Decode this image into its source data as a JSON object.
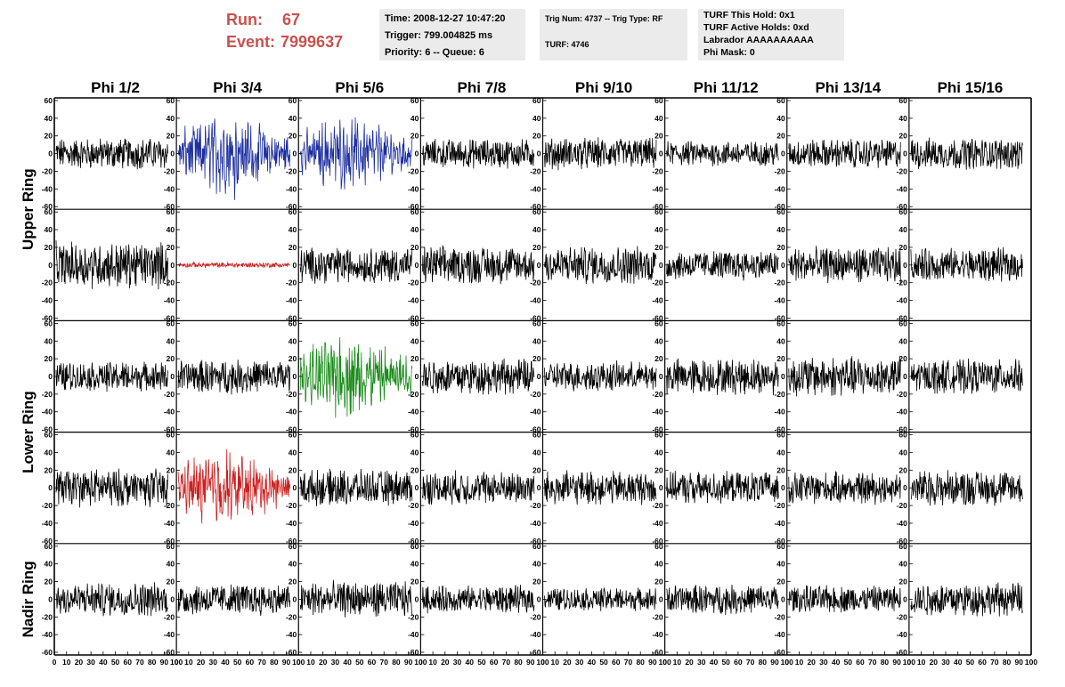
{
  "run_header": {
    "run_label": "Run:",
    "run_value": "67",
    "event_label": "Event:",
    "event_value": "7999637",
    "color": "#c8524f"
  },
  "info_boxes": {
    "time_box": [
      "Time: 2008-12-27 10:47:20",
      "Trigger: 799.004825 ms",
      "Priority: 6 -- Queue: 6"
    ],
    "trig_box": [
      "Trig Num: 4737 -- Trig Type: RF",
      "",
      "TURF: 4746"
    ],
    "turf_box": [
      "TURF This Hold: 0x1",
      "TURF Active Holds: 0xd",
      "Labrador AAAAAAAAAA",
      "Phi Mask: 0"
    ]
  },
  "chart_data": {
    "type": "line",
    "columns": [
      "Phi 1/2",
      "Phi 3/4",
      "Phi 5/6",
      "Phi 7/8",
      "Phi 9/10",
      "Phi 11/12",
      "Phi 13/14",
      "Phi 15/16"
    ],
    "row_groups": [
      {
        "label": "Upper Ring",
        "rows": [
          0,
          1
        ]
      },
      {
        "label": "Lower Ring",
        "rows": [
          2,
          3
        ]
      },
      {
        "label": "Nadir Ring",
        "rows": [
          4
        ]
      }
    ],
    "xlim": [
      0,
      100
    ],
    "ylim": [
      -60,
      60
    ],
    "x_ticks": [
      0,
      10,
      20,
      30,
      40,
      50,
      60,
      70,
      80,
      90,
      100
    ],
    "y_ticks": [
      -60,
      -40,
      -20,
      0,
      20,
      40,
      60
    ],
    "series_colors": {
      "default": "#000000",
      "blue": "#1c2ea0",
      "red": "#cc1f1f",
      "green": "#1a8c1a"
    },
    "panels": [
      {
        "row": 0,
        "col": 0,
        "amp": 15,
        "color": "default"
      },
      {
        "row": 0,
        "col": 1,
        "amp": 28,
        "color": "blue",
        "burst": true
      },
      {
        "row": 0,
        "col": 2,
        "amp": 25,
        "color": "blue",
        "burst": true
      },
      {
        "row": 0,
        "col": 3,
        "amp": 14,
        "color": "default"
      },
      {
        "row": 0,
        "col": 4,
        "amp": 15,
        "color": "default"
      },
      {
        "row": 0,
        "col": 5,
        "amp": 12,
        "color": "default"
      },
      {
        "row": 0,
        "col": 6,
        "amp": 14,
        "color": "default"
      },
      {
        "row": 0,
        "col": 7,
        "amp": 15,
        "color": "default"
      },
      {
        "row": 1,
        "col": 0,
        "amp": 22,
        "color": "default"
      },
      {
        "row": 1,
        "col": 1,
        "amp": 2.5,
        "color": "red"
      },
      {
        "row": 1,
        "col": 2,
        "amp": 17,
        "color": "default"
      },
      {
        "row": 1,
        "col": 3,
        "amp": 18,
        "color": "default"
      },
      {
        "row": 1,
        "col": 4,
        "amp": 18,
        "color": "default"
      },
      {
        "row": 1,
        "col": 5,
        "amp": 14,
        "color": "default"
      },
      {
        "row": 1,
        "col": 6,
        "amp": 17,
        "color": "default"
      },
      {
        "row": 1,
        "col": 7,
        "amp": 16,
        "color": "default"
      },
      {
        "row": 2,
        "col": 0,
        "amp": 14,
        "color": "default"
      },
      {
        "row": 2,
        "col": 1,
        "amp": 16,
        "color": "default"
      },
      {
        "row": 2,
        "col": 2,
        "amp": 28,
        "color": "green",
        "burst": true
      },
      {
        "row": 2,
        "col": 3,
        "amp": 17,
        "color": "default"
      },
      {
        "row": 2,
        "col": 4,
        "amp": 14,
        "color": "default"
      },
      {
        "row": 2,
        "col": 5,
        "amp": 17,
        "color": "default"
      },
      {
        "row": 2,
        "col": 6,
        "amp": 19,
        "color": "default"
      },
      {
        "row": 2,
        "col": 7,
        "amp": 16,
        "color": "default"
      },
      {
        "row": 3,
        "col": 0,
        "amp": 18,
        "color": "default"
      },
      {
        "row": 3,
        "col": 1,
        "amp": 26,
        "color": "red",
        "burst": true
      },
      {
        "row": 3,
        "col": 2,
        "amp": 17,
        "color": "default"
      },
      {
        "row": 3,
        "col": 3,
        "amp": 16,
        "color": "default"
      },
      {
        "row": 3,
        "col": 4,
        "amp": 16,
        "color": "default"
      },
      {
        "row": 3,
        "col": 5,
        "amp": 15,
        "color": "default"
      },
      {
        "row": 3,
        "col": 6,
        "amp": 15,
        "color": "default"
      },
      {
        "row": 3,
        "col": 7,
        "amp": 17,
        "color": "default"
      },
      {
        "row": 4,
        "col": 0,
        "amp": 16,
        "color": "default"
      },
      {
        "row": 4,
        "col": 1,
        "amp": 15,
        "color": "default"
      },
      {
        "row": 4,
        "col": 2,
        "amp": 17,
        "color": "default"
      },
      {
        "row": 4,
        "col": 3,
        "amp": 13,
        "color": "default"
      },
      {
        "row": 4,
        "col": 4,
        "amp": 11,
        "color": "default"
      },
      {
        "row": 4,
        "col": 5,
        "amp": 14,
        "color": "default"
      },
      {
        "row": 4,
        "col": 6,
        "amp": 13,
        "color": "default"
      },
      {
        "row": 4,
        "col": 7,
        "amp": 16,
        "color": "default"
      }
    ]
  }
}
